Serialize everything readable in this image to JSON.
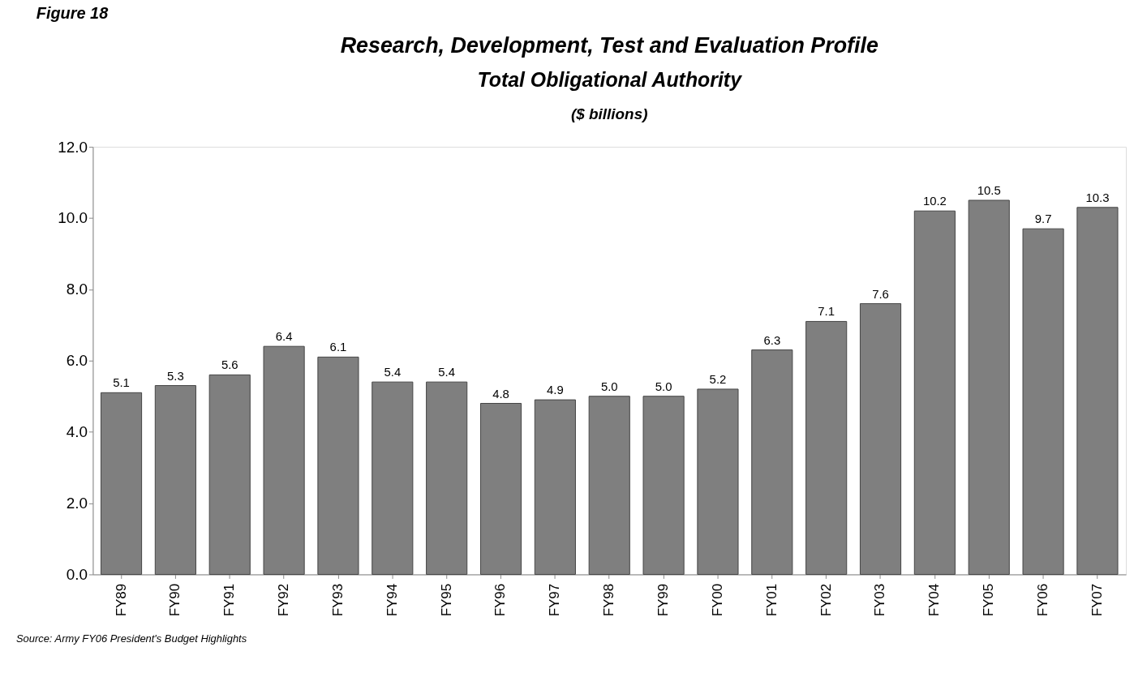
{
  "chart_data": {
    "type": "bar",
    "title": "Research, Development, Test and Evaluation Profile",
    "subtitle": "Total Obligational Authority",
    "ylabel": "($ billions)",
    "categories": [
      "FY89",
      "FY90",
      "FY91",
      "FY92",
      "FY93",
      "FY94",
      "FY95",
      "FY96",
      "FY97",
      "FY98",
      "FY99",
      "FY00",
      "FY01",
      "FY02",
      "FY03",
      "FY04",
      "FY05",
      "FY06",
      "FY07"
    ],
    "values": [
      5.1,
      5.3,
      5.6,
      6.4,
      6.1,
      5.4,
      5.4,
      4.8,
      4.9,
      5.0,
      5.0,
      5.2,
      6.3,
      7.1,
      7.6,
      10.2,
      10.5,
      9.7,
      10.3
    ],
    "color": "#7f7f7f",
    "ylim": [
      0,
      12
    ],
    "yticks": [
      {
        "value": 0,
        "label": "0.0"
      },
      {
        "value": 2,
        "label": "2.0"
      },
      {
        "value": 4,
        "label": "4.0"
      },
      {
        "value": 6,
        "label": "6.0"
      },
      {
        "value": 8,
        "label": "8.0"
      },
      {
        "value": 10,
        "label": "10.0"
      },
      {
        "value": 12,
        "label": "12.0"
      }
    ],
    "value_labels": [
      "5.1",
      "5.3",
      "5.6",
      "6.4",
      "6.1",
      "5.4",
      "5.4",
      "4.8",
      "4.9",
      "5.0",
      "5.0",
      "5.2",
      "6.3",
      "7.1",
      "7.6",
      "10.2",
      "10.5",
      "9.7",
      "10.3"
    ],
    "grid": false,
    "annotations": [
      "Figure 18",
      "Source: Army FY06 President's Budget Highlights"
    ]
  }
}
